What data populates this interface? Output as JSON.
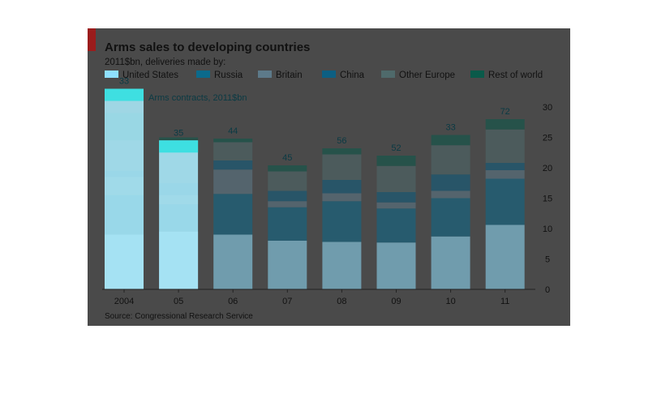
{
  "chart_data": {
    "type": "bar",
    "stacked": true,
    "title": "Arms sales to developing countries",
    "subtitle": "2011$bn, deliveries made by:",
    "source": "Source: Congressional Research Service",
    "categories": [
      "2004",
      "05",
      "06",
      "07",
      "08",
      "09",
      "10",
      "11"
    ],
    "series": [
      {
        "name": "United States",
        "color": "#8fe0ff",
        "values": [
          9,
          9.5,
          9,
          8,
          7.8,
          7.7,
          8.7,
          10.6
        ]
      },
      {
        "name": "Russia",
        "color": "#0b6a8c",
        "values": [
          6.5,
          4.5,
          6.7,
          5.5,
          6.7,
          5.6,
          6.3,
          7.6
        ]
      },
      {
        "name": "Britain",
        "color": "#5d7a8a",
        "values": [
          3,
          1.5,
          4,
          1,
          1.3,
          1,
          1.2,
          1.4
        ]
      },
      {
        "name": "China",
        "color": "#0d5f82",
        "values": [
          1,
          2,
          1.5,
          1.7,
          2.2,
          1.7,
          2.7,
          1.2
        ]
      },
      {
        "name": "Other Europe",
        "color": "#4f6a6b",
        "values": [
          5,
          6,
          3,
          3.2,
          4.2,
          4.3,
          4.8,
          5.5
        ]
      },
      {
        "name": "Rest of world",
        "color": "#0a5a4a",
        "values": [
          4.5,
          1.5,
          0.6,
          1,
          1,
          1.7,
          1.7,
          1.7
        ]
      }
    ],
    "highlight_bars": {
      "2004": 33,
      "05": 24.5
    },
    "contracts": {
      "label": "Arms contracts, 2011$bn",
      "values": [
        33,
        35,
        44,
        45,
        56,
        52,
        33,
        72
      ]
    },
    "yticks": [
      0,
      5,
      10,
      15,
      20,
      25,
      30
    ],
    "ylim": [
      0,
      30
    ],
    "grid": false,
    "legend_position": "top"
  }
}
